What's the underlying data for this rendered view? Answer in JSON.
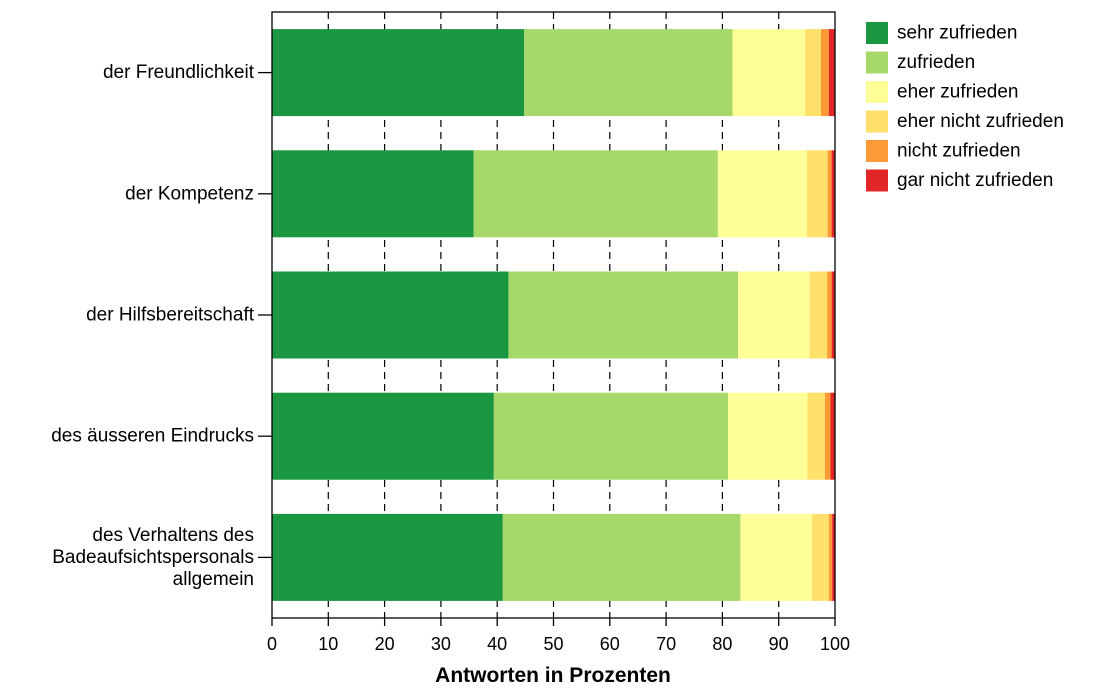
{
  "chart_data": {
    "type": "bar",
    "orientation": "horizontal",
    "stacked": true,
    "title": "",
    "xlabel": "Antworten in Prozenten",
    "ylabel": "",
    "xlim": [
      0,
      100
    ],
    "xticks": [
      0,
      10,
      20,
      30,
      40,
      50,
      60,
      70,
      80,
      90,
      100
    ],
    "grid": "vertical dashed",
    "legend_position": "top-right",
    "categories": [
      [
        "der Freundlichkeit"
      ],
      [
        "der Kompetenz"
      ],
      [
        "der Hilfsbereitschaft"
      ],
      [
        "des äusseren Eindrucks"
      ],
      [
        "des Verhaltens des",
        "Badeaufsichtspersonals",
        "allgemein"
      ]
    ],
    "series": [
      {
        "name": "sehr zufrieden",
        "color": "#1b9641",
        "values": [
          44.8,
          35.8,
          42.0,
          39.4,
          41.0
        ]
      },
      {
        "name": "zufrieden",
        "color": "#a6d96a",
        "values": [
          37.0,
          43.4,
          40.8,
          41.6,
          42.2
        ]
      },
      {
        "name": "eher zufrieden",
        "color": "#ffff99",
        "values": [
          12.9,
          15.8,
          12.7,
          14.1,
          12.7
        ]
      },
      {
        "name": "eher nicht zufrieden",
        "color": "#fee06a",
        "values": [
          2.8,
          3.7,
          3.1,
          3.1,
          3.0
        ]
      },
      {
        "name": "nicht zufrieden",
        "color": "#fd9a35",
        "values": [
          1.4,
          0.7,
          0.8,
          1.0,
          0.6
        ]
      },
      {
        "name": "gar nicht zufrieden",
        "color": "#e02626",
        "values": [
          1.1,
          0.6,
          0.6,
          0.8,
          0.5
        ]
      }
    ]
  }
}
